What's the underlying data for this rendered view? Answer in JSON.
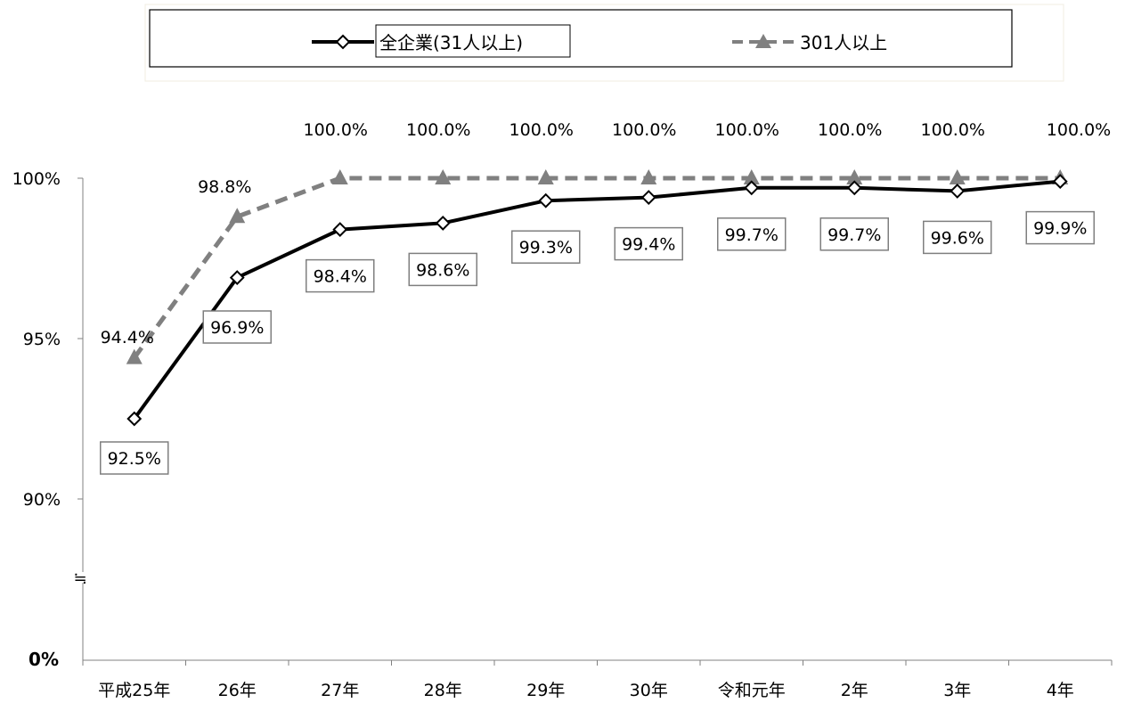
{
  "chart_data": {
    "type": "line",
    "categories": [
      "平成25年",
      "26年",
      "27年",
      "28年",
      "29年",
      "30年",
      "令和元年",
      "2年",
      "3年",
      "4年"
    ],
    "series": [
      {
        "name": "全企業(31人以上)",
        "values": [
          92.5,
          96.9,
          98.4,
          98.6,
          99.3,
          99.4,
          99.7,
          99.7,
          99.6,
          99.9
        ],
        "labels": [
          "92.5%",
          "96.9%",
          "98.4%",
          "98.6%",
          "99.3%",
          "99.4%",
          "99.7%",
          "99.7%",
          "99.6%",
          "99.9%"
        ],
        "color": "#000000",
        "style": "solid",
        "marker": "diamond-open"
      },
      {
        "name": "301人以上",
        "values": [
          94.4,
          98.8,
          100.0,
          100.0,
          100.0,
          100.0,
          100.0,
          100.0,
          100.0,
          100.0
        ],
        "labels": [
          "94.4%",
          "98.8%",
          "100.0%",
          "100.0%",
          "100.0%",
          "100.0%",
          "100.0%",
          "100.0%",
          "100.0%",
          "100.0%"
        ],
        "color": "#808080",
        "style": "dashed",
        "marker": "triangle"
      }
    ],
    "yticks": [
      {
        "value": 100,
        "label": "100%"
      },
      {
        "value": 95,
        "label": "95%"
      },
      {
        "value": 90,
        "label": "90%"
      }
    ],
    "y_break_mark": "≒",
    "y_origin_label": "0%",
    "ylim": [
      87.5,
      100
    ],
    "axis_break": true,
    "grid": false,
    "legend_position": "top-center"
  }
}
